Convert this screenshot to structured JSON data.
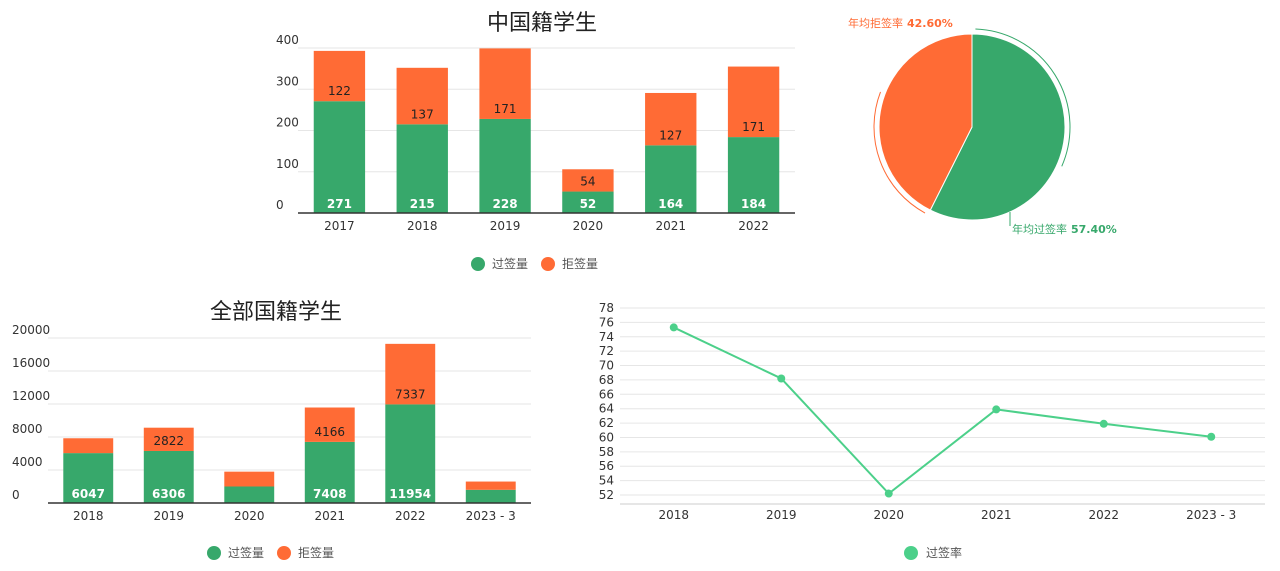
{
  "colors": {
    "pass": "#37a86b",
    "reject": "#ff6b35",
    "line": "#4cd08a",
    "grid": "#e6e6e6",
    "axis": "#333333"
  },
  "chart_data": [
    {
      "id": "china",
      "type": "bar",
      "stacked": true,
      "title": "中国籍学生",
      "categories": [
        "2017",
        "2018",
        "2019",
        "2020",
        "2021",
        "2022"
      ],
      "series": [
        {
          "name": "过签量",
          "values": [
            271,
            215,
            228,
            52,
            164,
            184
          ]
        },
        {
          "name": "拒签量",
          "values": [
            122,
            137,
            171,
            54,
            127,
            171
          ]
        }
      ],
      "yticks": [
        "0",
        "100",
        "200",
        "300",
        "400"
      ],
      "ylim": [
        0,
        400
      ],
      "legend": "bottom"
    },
    {
      "id": "pie",
      "type": "pie",
      "slices": [
        {
          "label": "年均过签率",
          "value": 57.4,
          "text": "57.40%"
        },
        {
          "label": "年均拒签率",
          "value": 42.6,
          "text": "42.60%"
        }
      ]
    },
    {
      "id": "all",
      "type": "bar",
      "stacked": true,
      "title": "全部国籍学生",
      "categories": [
        "2018",
        "2019",
        "2020",
        "2021",
        "2022",
        "2023 - 3"
      ],
      "series": [
        {
          "name": "过签量",
          "values": [
            6047,
            6306,
            2000,
            7408,
            11954,
            1600
          ],
          "labels": [
            "6047",
            "6306",
            "",
            "7408",
            "11954",
            ""
          ]
        },
        {
          "name": "拒签量",
          "values": [
            1800,
            2822,
            1800,
            4166,
            7337,
            1000
          ],
          "labels": [
            "",
            "2822",
            "",
            "4166",
            "7337",
            ""
          ]
        }
      ],
      "yticks": [
        "0",
        "4000",
        "8000",
        "12000",
        "16000",
        "20000"
      ],
      "ylim": [
        0,
        20000
      ],
      "legend": "bottom"
    },
    {
      "id": "rate",
      "type": "line",
      "categories": [
        "2018",
        "2019",
        "2020",
        "2021",
        "2022",
        "2023 - 3"
      ],
      "series": [
        {
          "name": "过签率",
          "values": [
            75.3,
            68.2,
            52.2,
            63.9,
            61.9,
            60.1
          ]
        }
      ],
      "yticks": [
        "52",
        "54",
        "56",
        "58",
        "60",
        "62",
        "64",
        "66",
        "68",
        "70",
        "72",
        "74",
        "76",
        "78"
      ],
      "ylim": [
        52,
        78
      ],
      "legend": "bottom"
    }
  ]
}
